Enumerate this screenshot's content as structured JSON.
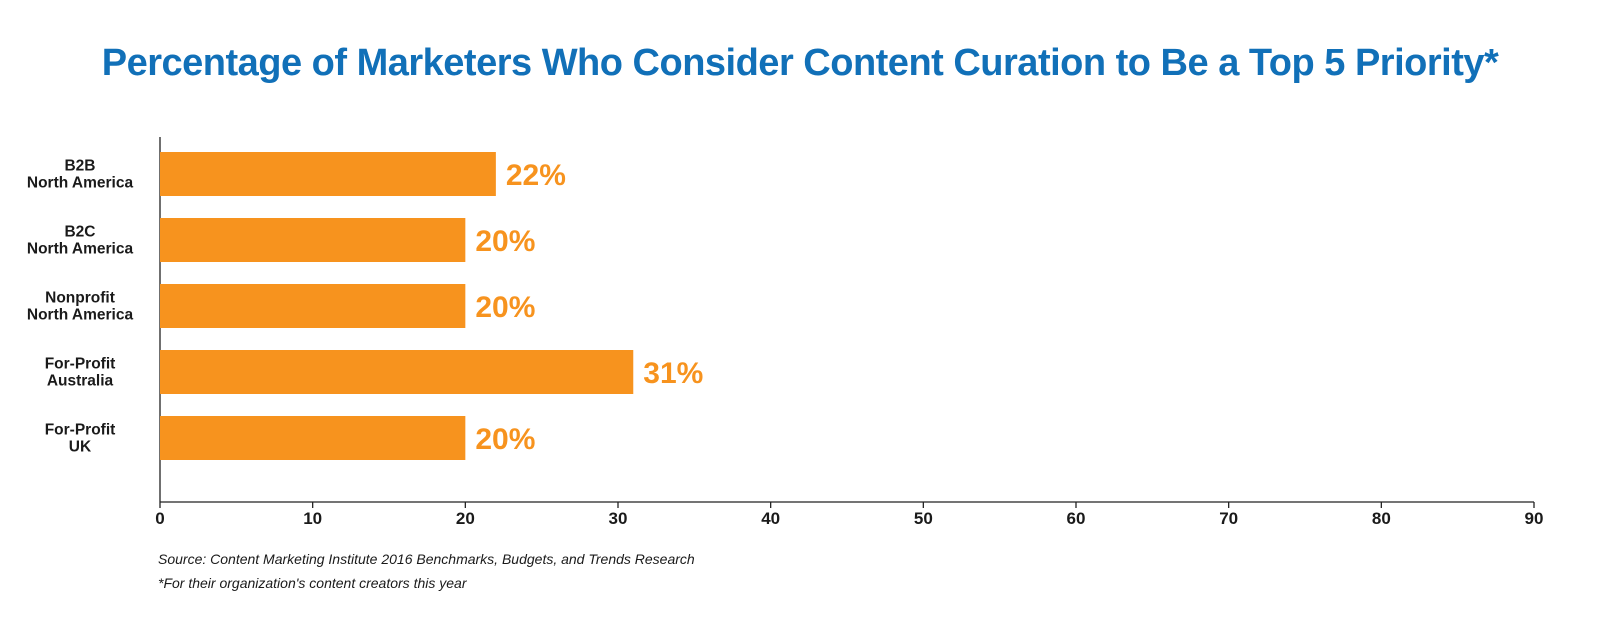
{
  "chart_data": {
    "type": "bar",
    "orientation": "horizontal",
    "title": "Percentage of Marketers Who Consider Content Curation to Be a Top 5 Priority*",
    "categories": [
      [
        "B2B",
        "North America"
      ],
      [
        "B2C",
        "North America"
      ],
      [
        "Nonprofit",
        "North America"
      ],
      [
        "For-Profit",
        "Australia"
      ],
      [
        "For-Profit",
        "UK"
      ]
    ],
    "values": [
      22,
      20,
      20,
      31,
      20
    ],
    "value_labels": [
      "22%",
      "20%",
      "20%",
      "31%",
      "20%"
    ],
    "xlim": [
      0,
      90
    ],
    "xticks": [
      0,
      10,
      20,
      30,
      40,
      50,
      60,
      70,
      80,
      90
    ],
    "xlabel": "",
    "ylabel": "",
    "grid": false,
    "legend": "none",
    "bar_color": "#f7931e",
    "value_label_color": "#f7931e",
    "title_color": "#1170b8"
  },
  "footer": {
    "source": "Source: Content Marketing Institute 2016 Benchmarks, Budgets, and Trends Research",
    "note": "*For their organization's content creators this year"
  }
}
